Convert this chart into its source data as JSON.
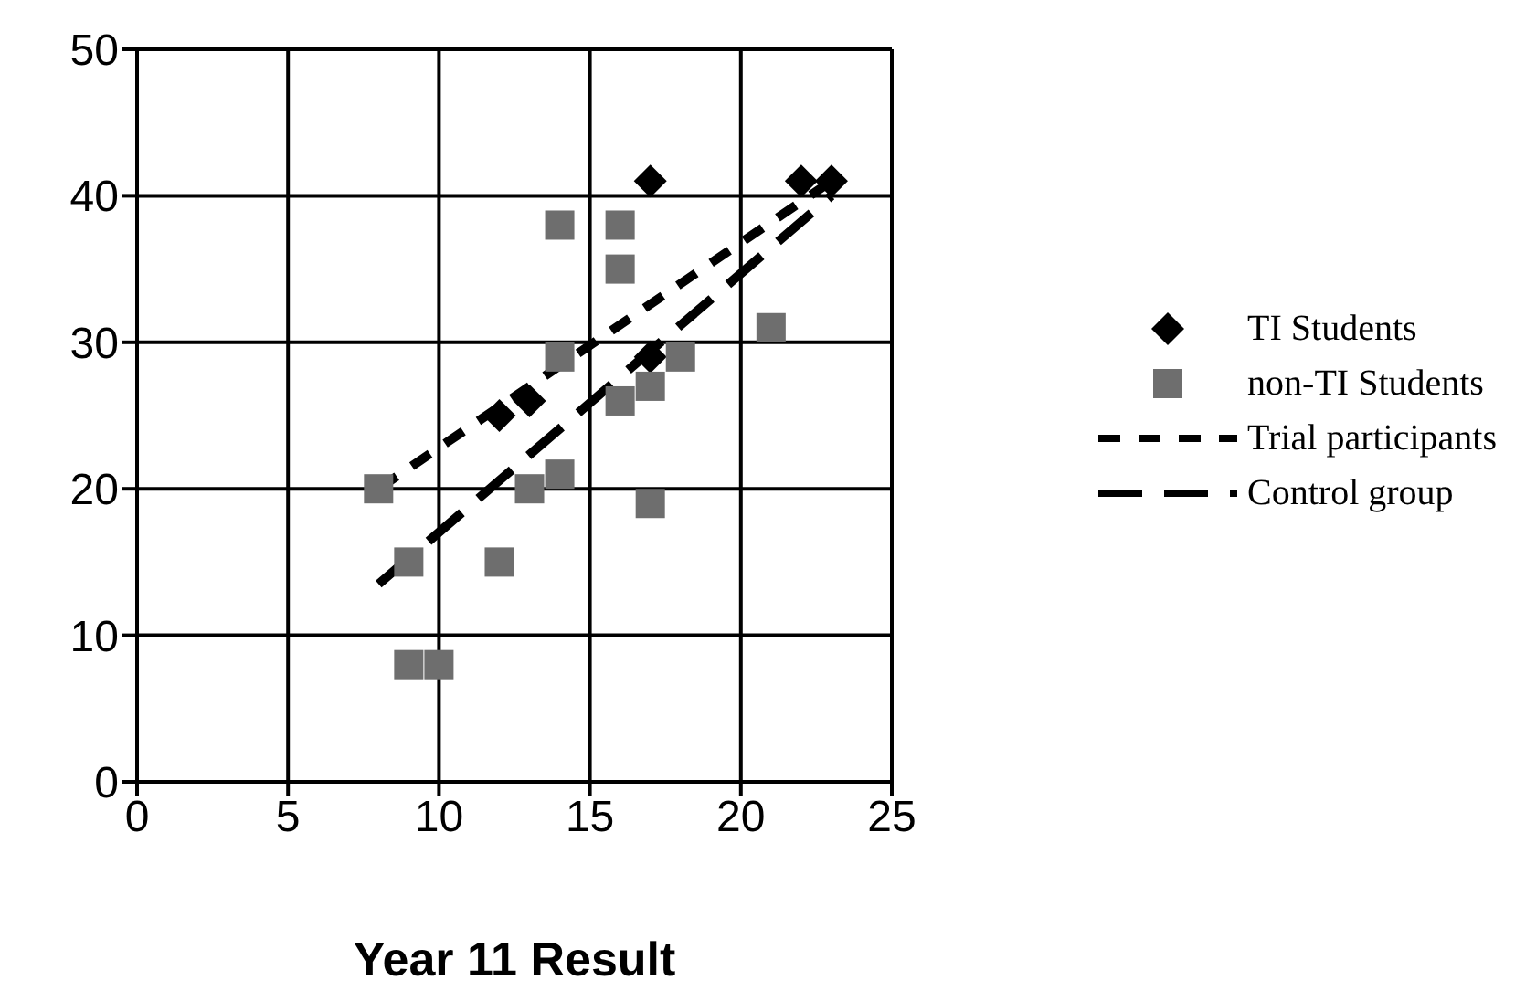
{
  "chart_data": {
    "type": "scatter",
    "xlabel": "Year 11 Result",
    "xlim": [
      0,
      25
    ],
    "xticks": [
      0,
      5,
      10,
      15,
      20,
      25
    ],
    "ylim": [
      0,
      50
    ],
    "yticks": [
      0,
      10,
      20,
      30,
      40,
      50
    ],
    "grid": true,
    "legend": "right",
    "series": [
      {
        "name": "TI Students",
        "color": "#000000",
        "marker": "diamond",
        "x": [
          17,
          22,
          23,
          12,
          13,
          17
        ],
        "values": [
          41,
          41,
          41,
          25,
          26,
          29
        ]
      },
      {
        "name": "non-TI Students",
        "color": "#6e6e6e",
        "marker": "square",
        "x": [
          8,
          9,
          9,
          10,
          12,
          13,
          14,
          14,
          14,
          16,
          16,
          16,
          17,
          17,
          18,
          21
        ],
        "values": [
          20,
          15,
          8,
          8,
          15,
          20,
          21,
          29,
          38,
          38,
          35,
          26,
          27,
          19,
          29,
          31
        ]
      },
      {
        "name": "Trial participants",
        "type": "line",
        "color": "#000000",
        "line_style": "dashed",
        "marker": "none",
        "x": [
          8,
          23
        ],
        "values": [
          20,
          41
        ]
      },
      {
        "name": "Control group",
        "type": "line",
        "color": "#000000",
        "line_style": "dashed",
        "marker": "none",
        "x": [
          8,
          23
        ],
        "values": [
          13.5,
          40
        ]
      }
    ]
  }
}
